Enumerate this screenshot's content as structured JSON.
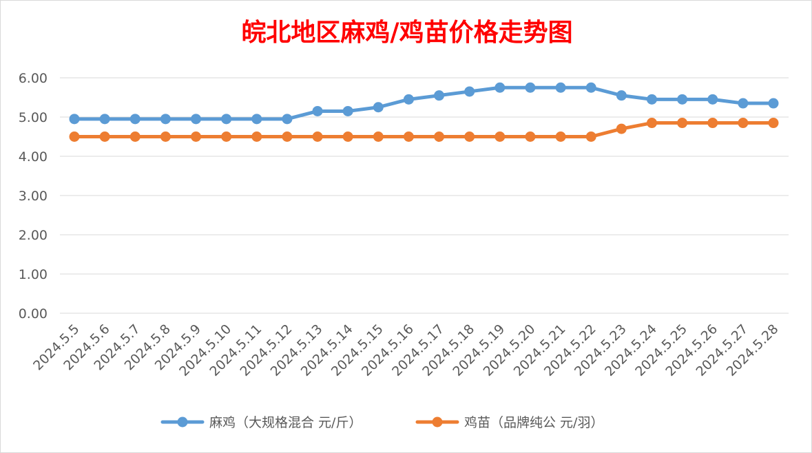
{
  "chart_data": {
    "type": "line",
    "title": "皖北地区麻鸡/鸡苗价格走势图",
    "categories": [
      "2024.5.5",
      "2024.5.6",
      "2024.5.7",
      "2024.5.8",
      "2024.5.9",
      "2024.5.10",
      "2024.5.11",
      "2024.5.12",
      "2024.5.13",
      "2024.5.14",
      "2024.5.15",
      "2024.5.16",
      "2024.5.17",
      "2024.5.18",
      "2024.5.19",
      "2024.5.20",
      "2024.5.21",
      "2024.5.22",
      "2024.5.23",
      "2024.5.24",
      "2024.5.25",
      "2024.5.26",
      "2024.5.27",
      "2024.5.28"
    ],
    "yticks": [
      "0.00",
      "1.00",
      "2.00",
      "3.00",
      "4.00",
      "5.00",
      "6.00"
    ],
    "ylim": [
      0,
      6
    ],
    "grid": true,
    "legend_position": "bottom",
    "series": [
      {
        "name": "麻鸡（大规格混合 元/斤）",
        "color": "#5b9bd5",
        "values": [
          4.95,
          4.95,
          4.95,
          4.95,
          4.95,
          4.95,
          4.95,
          4.95,
          5.15,
          5.15,
          5.25,
          5.45,
          5.55,
          5.65,
          5.75,
          5.75,
          5.75,
          5.75,
          5.55,
          5.45,
          5.45,
          5.45,
          5.35,
          5.35
        ]
      },
      {
        "name": "鸡苗（品牌纯公 元/羽）",
        "color": "#ed7d31",
        "values": [
          4.5,
          4.5,
          4.5,
          4.5,
          4.5,
          4.5,
          4.5,
          4.5,
          4.5,
          4.5,
          4.5,
          4.5,
          4.5,
          4.5,
          4.5,
          4.5,
          4.5,
          4.5,
          4.7,
          4.85,
          4.85,
          4.85,
          4.85,
          4.85
        ]
      }
    ]
  }
}
